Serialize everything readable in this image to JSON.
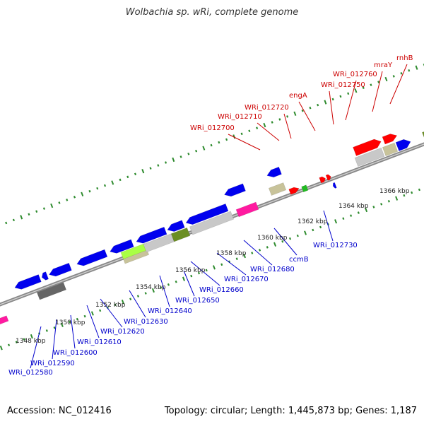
{
  "title": "Wolbachia sp. wRi, complete genome",
  "footer": {
    "accession": "Accession: NC_012416",
    "summary": "Topology: circular; Length: 1,445,873 bp; Genes: 1,187"
  },
  "colors": {
    "backbone": "#888888",
    "ticks": "#2e8b2e",
    "forward_label": "#cc0000",
    "reverse_label": "#0000cc"
  },
  "scale_labels": [
    "1348 kbp",
    "1350 kbp",
    "1352 kbp",
    "1354 kbp",
    "1356 kbp",
    "1358 kbp",
    "1360 kbp",
    "1362 kbp",
    "1364 kbp",
    "1366 kbp"
  ],
  "forward_gene_labels": [
    "WRi_012700",
    "WRi_012710",
    "WRi_012720",
    "engA",
    "WRi_012750",
    "WRi_012760",
    "mraY",
    "rnhB"
  ],
  "reverse_gene_labels": [
    "WRi_012580",
    "WRi_012590",
    "WRi_012600",
    "WRi_012610",
    "WRi_012620",
    "WRi_012630",
    "WRi_012640",
    "WRi_012650",
    "WRi_012660",
    "WRi_012670",
    "WRi_012680",
    "ccmB",
    "WRi_012730"
  ]
}
